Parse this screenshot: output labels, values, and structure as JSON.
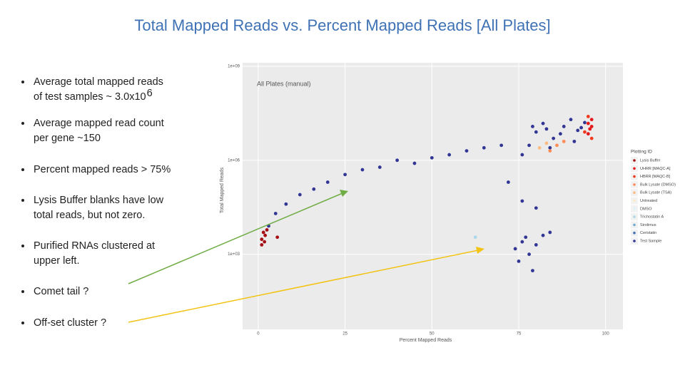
{
  "title": "Total Mapped Reads vs. Percent Mapped Reads [All Plates]",
  "bullets": [
    {
      "lines": [
        "Average total mapped reads",
        "of test samples ~ 3.0x10"
      ],
      "sup": "6"
    },
    {
      "lines": [
        "Average mapped read count",
        "per gene ~150"
      ]
    },
    {
      "lines": [
        "Percent mapped reads > 75%"
      ]
    },
    {
      "lines": [
        "Lysis Buffer blanks have low",
        "total reads, but not zero."
      ]
    },
    {
      "lines": [
        "Purified RNAs clustered at",
        "upper left."
      ]
    },
    {
      "lines": [
        "Comet tail ?"
      ]
    },
    {
      "lines": [
        "Off-set cluster ?"
      ]
    }
  ],
  "chart_data": {
    "type": "scatter",
    "title": "All Plates (manual)",
    "xlabel": "Percent Mapped Reads",
    "ylabel": "Total Mapped Reads",
    "xlim": [
      -4.5,
      105
    ],
    "ylim": [
      4,
      1300000000
    ],
    "log_y": true,
    "grid": true,
    "xticks": [
      0,
      25,
      50,
      75,
      100
    ],
    "yticks": [
      {
        "value": 1000,
        "label": "1e+03"
      },
      {
        "value": 1000000,
        "label": "1e+06"
      },
      {
        "value": 1000000000,
        "label": "1e+09"
      }
    ],
    "legend_title": "Plotting ID",
    "legend": "right",
    "series": [
      {
        "name": "Lysis Buffer",
        "color": "#a50f15",
        "x": [
          1,
          1.5,
          2,
          1,
          2.5,
          1.8,
          5.5
        ],
        "values": [
          3000,
          5000,
          4000,
          2000,
          6000,
          2500,
          3500
        ]
      },
      {
        "name": "UHRR [MAQC-A]",
        "color": "#e31a1c",
        "x": [
          95,
          95.5,
          96,
          95,
          96
        ],
        "values": [
          15000000,
          10000000,
          20000000,
          7000000,
          12000000
        ]
      },
      {
        "name": "HBRR [MAQC-B]",
        "color": "#f03b20",
        "x": [
          94,
          96,
          95
        ],
        "values": [
          8000000,
          5000000,
          25000000
        ]
      },
      {
        "name": "Bulk Lysate (DMSO)",
        "color": "#fc8d59",
        "x": [
          86,
          88,
          84
        ],
        "values": [
          3000000,
          4000000,
          2000000
        ]
      },
      {
        "name": "Bulk Lysate (TSA)",
        "color": "#fdbb84",
        "x": [
          81,
          83
        ],
        "values": [
          2500000,
          3500000
        ]
      },
      {
        "name": "Untreated",
        "color": "#fee8c8",
        "x": [],
        "values": []
      },
      {
        "name": "DMSO",
        "color": "#e0f3f8",
        "x": [],
        "values": []
      },
      {
        "name": "Trichostatin A",
        "color": "#abd9e9",
        "x": [
          62.5
        ],
        "values": [
          3500
        ]
      },
      {
        "name": "Sirolimus",
        "color": "#74add1",
        "x": [],
        "values": []
      },
      {
        "name": "Ceristatin",
        "color": "#4575b4",
        "x": [],
        "values": []
      },
      {
        "name": "Test Sample",
        "color": "#313695",
        "x": [
          78,
          80,
          82,
          85,
          88,
          90,
          92,
          94,
          76,
          84,
          87,
          91,
          93,
          79,
          83,
          3,
          5,
          8,
          12,
          16,
          20,
          25,
          30,
          35,
          40,
          45,
          50,
          55,
          60,
          65,
          70,
          72,
          76,
          80,
          74,
          76,
          78,
          77,
          80,
          82,
          75,
          79,
          84
        ],
        "values": [
          3000000,
          8000000,
          15000000,
          5000000,
          12000000,
          20000000,
          9000000,
          16000000,
          1500000,
          2500000,
          7000000,
          4000000,
          11000000,
          12000000,
          10000000,
          8000,
          20000,
          40000,
          80000,
          120000,
          200000,
          350000,
          500000,
          600000,
          1000000,
          800000,
          1200000,
          1500000,
          2000000,
          2500000,
          3000000,
          200000,
          50000,
          30000,
          1500,
          2500,
          1000,
          3500,
          2000,
          4000,
          600,
          300,
          5000
        ]
      }
    ]
  }
}
